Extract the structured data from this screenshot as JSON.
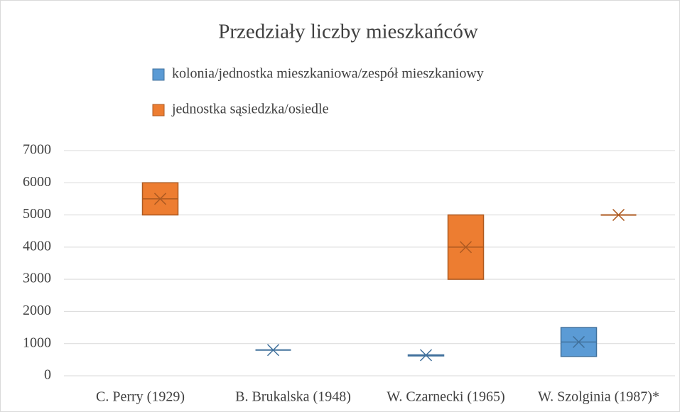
{
  "chart_data": {
    "type": "box",
    "title": "Przedziały liczby mieszkańców",
    "categories": [
      "C. Perry (1929)",
      "B. Brukalska (1948)",
      "W. Czarnecki (1965)",
      "W. Szolginia (1987)*"
    ],
    "series": [
      {
        "name": "kolonia/jednostka mieszkaniowa/zespół mieszkaniowy",
        "color": "#5b9bd5",
        "edge": "#41719c",
        "low": [
          null,
          800,
          620,
          600
        ],
        "high": [
          null,
          800,
          650,
          1500
        ],
        "median": [
          null,
          800,
          640,
          1050
        ],
        "mean": [
          null,
          800,
          640,
          1050
        ]
      },
      {
        "name": "jednostka sąsiedzka/osiedle",
        "color": "#ed7d31",
        "edge": "#ae5a21",
        "low": [
          5000,
          null,
          3000,
          5000
        ],
        "high": [
          6000,
          null,
          5000,
          5000
        ],
        "median": [
          5500,
          null,
          4000,
          5000
        ],
        "mean": [
          5500,
          null,
          4000,
          5000
        ]
      }
    ],
    "ylim": [
      0,
      7000
    ],
    "yticks": [
      0,
      1000,
      2000,
      3000,
      4000,
      5000,
      6000,
      7000
    ],
    "grid": true,
    "legend": "top"
  }
}
